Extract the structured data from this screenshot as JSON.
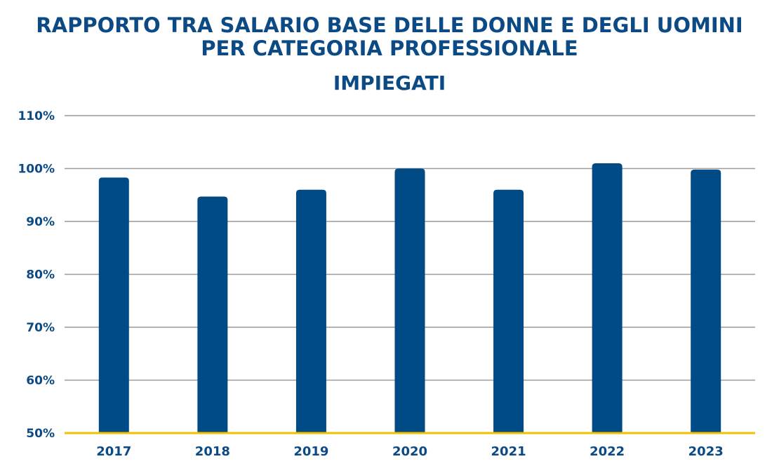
{
  "title_lines": [
    "RAPPORTO TRA SALARIO BASE DELLE DONNE E DEGLI UOMINI",
    "PER CATEGORIA PROFESSIONALE"
  ],
  "subtitle": "IMPIEGATI",
  "colors": {
    "text": "#0b4a85",
    "bar": "#004a85",
    "gridline": "#9a9a9a",
    "baseline": "#f2c200"
  },
  "chart_data": {
    "type": "bar",
    "title": "RAPPORTO TRA SALARIO BASE DELLE DONNE E DEGLI UOMINI PER CATEGORIA PROFESSIONALE",
    "subtitle": "IMPIEGATI",
    "categories": [
      "2017",
      "2018",
      "2019",
      "2020",
      "2021",
      "2022",
      "2023"
    ],
    "values": [
      98.3,
      94.7,
      96.0,
      100.0,
      96.0,
      101.0,
      99.8
    ],
    "ylim": [
      50,
      110
    ],
    "yticks": [
      50,
      60,
      70,
      80,
      90,
      100,
      110
    ],
    "ytick_labels": [
      "50%",
      "60%",
      "70%",
      "80%",
      "90%",
      "100%",
      "110%"
    ],
    "grid": true,
    "legend": "none"
  }
}
